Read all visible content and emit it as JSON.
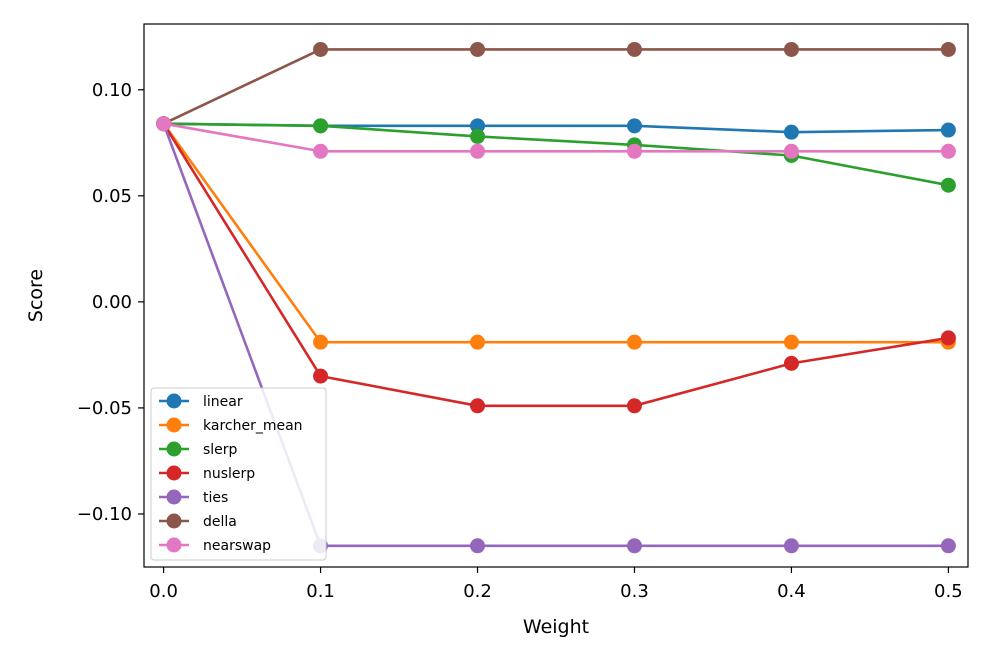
{
  "chart_data": {
    "type": "line",
    "title": "",
    "xlabel": "Weight",
    "ylabel": "Score",
    "xlim": [
      -0.0125,
      0.5125
    ],
    "ylim": [
      -0.125,
      0.131
    ],
    "x_ticks": [
      0.0,
      0.1,
      0.2,
      0.3,
      0.4,
      0.5
    ],
    "x_tick_labels": [
      "0.0",
      "0.1",
      "0.2",
      "0.3",
      "0.4",
      "0.5"
    ],
    "y_ticks": [
      -0.1,
      -0.05,
      0.0,
      0.05,
      0.1
    ],
    "y_tick_labels": [
      "−0.10",
      "−0.05",
      "0.00",
      "0.05",
      "0.10"
    ],
    "grid": false,
    "legend_position": "lower-left",
    "x": [
      0.0,
      0.1,
      0.2,
      0.3,
      0.4,
      0.5
    ],
    "series": [
      {
        "name": "linear",
        "color": "#1f77b4",
        "values": [
          0.084,
          0.083,
          0.083,
          0.083,
          0.08,
          0.081
        ]
      },
      {
        "name": "karcher_mean",
        "color": "#ff7f0e",
        "values": [
          0.084,
          -0.019,
          -0.019,
          -0.019,
          -0.019,
          -0.019
        ]
      },
      {
        "name": "slerp",
        "color": "#2ca02c",
        "values": [
          0.084,
          0.083,
          0.078,
          0.074,
          0.069,
          0.055
        ]
      },
      {
        "name": "nuslerp",
        "color": "#d62728",
        "values": [
          0.084,
          -0.035,
          -0.049,
          -0.049,
          -0.029,
          -0.017
        ]
      },
      {
        "name": "ties",
        "color": "#9467bd",
        "values": [
          0.084,
          -0.115,
          -0.115,
          -0.115,
          -0.115,
          -0.115
        ]
      },
      {
        "name": "della",
        "color": "#8c564b",
        "values": [
          0.084,
          0.119,
          0.119,
          0.119,
          0.119,
          0.119
        ]
      },
      {
        "name": "nearswap",
        "color": "#e377c2",
        "values": [
          0.084,
          0.071,
          0.071,
          0.071,
          0.071,
          0.071
        ]
      }
    ]
  }
}
